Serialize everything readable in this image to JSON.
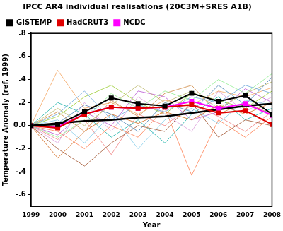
{
  "chart_data": {
    "type": "line",
    "title": "IPCC AR4 individual realisations (20C3M+SRES A1B)",
    "x_label": "Year",
    "y_label": "Temperature Anomaly (ref. 1999)",
    "x": [
      1999,
      2000,
      2001,
      2002,
      2003,
      2004,
      2005,
      2006,
      2007,
      2008
    ],
    "xlim": [
      1999,
      2008
    ],
    "xticks": [
      1999,
      2000,
      2001,
      2002,
      2003,
      2004,
      2005,
      2006,
      2007,
      2008
    ],
    "ylim": [
      -0.7,
      0.8
    ],
    "yticks": [
      {
        "value": -0.6,
        "label": "-.6"
      },
      {
        "value": -0.4,
        "label": "-.4"
      },
      {
        "value": -0.2,
        "label": "-.2"
      },
      {
        "value": 0,
        "label": "0.0"
      },
      {
        "value": 0.2,
        "label": ".2"
      },
      {
        "value": 0.4,
        "label": ".4"
      },
      {
        "value": 0.6,
        "label": ".6"
      },
      {
        "value": 0.8,
        "label": ".8"
      }
    ],
    "grid": false,
    "legend": "upper left",
    "series": [
      {
        "name": "GISTEMP",
        "color": "#000000",
        "marker": "square",
        "line_style": "solid",
        "values": [
          0,
          0.01,
          0.12,
          0.24,
          0.19,
          0.17,
          0.28,
          0.21,
          0.26,
          0.1
        ]
      },
      {
        "name": "HadCRUT3",
        "color": "#e00000",
        "marker": "square",
        "line_style": "solid",
        "values": [
          0,
          -0.02,
          0.1,
          0.16,
          0.15,
          0.16,
          0.18,
          0.11,
          0.13,
          0.01
        ]
      },
      {
        "name": "NCDC",
        "color": "#ff00ff",
        "marker": "square",
        "line_style": "solid",
        "values": [
          0,
          -0.01,
          0.1,
          0.16,
          0.15,
          0.16,
          0.21,
          0.15,
          0.19,
          0.09
        ]
      },
      {
        "color": "#000000",
        "marker": "none",
        "line_style": "solid",
        "values": [
          0,
          0.02,
          0.04,
          0.05,
          0.07,
          0.08,
          0.11,
          0.14,
          0.17,
          0.19
        ]
      },
      {
        "color": "#6fa8dc",
        "marker": "none",
        "line_style": "solid",
        "values": [
          0,
          0.1,
          0.3,
          0.05,
          0.18,
          0.12,
          0.25,
          0.2,
          0.35,
          0.28
        ]
      },
      {
        "color": "#f4a460",
        "marker": "none",
        "line_style": "solid",
        "values": [
          0,
          0.48,
          0.15,
          0.2,
          0.1,
          0.22,
          0.18,
          0.3,
          0.25,
          0.33
        ]
      },
      {
        "color": "#90ee90",
        "marker": "none",
        "line_style": "solid",
        "values": [
          0,
          -0.1,
          0.05,
          0.28,
          0.15,
          0.3,
          0.22,
          0.4,
          0.28,
          0.45
        ]
      },
      {
        "color": "#d2691e",
        "marker": "none",
        "line_style": "solid",
        "values": [
          0,
          -0.28,
          -0.05,
          0.1,
          0.02,
          0.12,
          0.05,
          0.18,
          0.1,
          0.2
        ]
      },
      {
        "color": "#87ceeb",
        "marker": "none",
        "line_style": "solid",
        "values": [
          0,
          0.05,
          -0.15,
          0.1,
          -0.2,
          0.05,
          0.15,
          0.02,
          0.22,
          0.18
        ]
      },
      {
        "color": "#dda0dd",
        "marker": "none",
        "line_style": "solid",
        "values": [
          0,
          -0.15,
          0.2,
          -0.05,
          0.25,
          0.1,
          -0.05,
          0.3,
          0.12,
          0.25
        ]
      },
      {
        "color": "#bdb76b",
        "marker": "none",
        "line_style": "solid",
        "values": [
          0,
          0.15,
          0.0,
          0.18,
          0.35,
          0.2,
          0.3,
          0.15,
          0.28,
          0.38
        ]
      },
      {
        "color": "#ff7f50",
        "marker": "none",
        "line_style": "solid",
        "values": [
          0,
          -0.05,
          -0.2,
          0.0,
          -0.1,
          0.15,
          -0.43,
          0.05,
          -0.1,
          0.08
        ]
      },
      {
        "color": "#20b2aa",
        "marker": "none",
        "line_style": "solid",
        "values": [
          0,
          0.2,
          0.1,
          -0.1,
          0.05,
          -0.15,
          0.1,
          0.25,
          0.05,
          0.15
        ]
      },
      {
        "color": "#a0522d",
        "marker": "none",
        "line_style": "solid",
        "values": [
          0,
          -0.2,
          -0.35,
          -0.15,
          0.0,
          -0.05,
          0.2,
          -0.1,
          0.05,
          0.0
        ]
      },
      {
        "color": "#9acd32",
        "marker": "none",
        "line_style": "solid",
        "values": [
          0,
          0.08,
          0.25,
          0.35,
          0.2,
          0.1,
          0.28,
          0.22,
          0.15,
          0.3
        ]
      },
      {
        "color": "#ba55d3",
        "marker": "none",
        "line_style": "solid",
        "values": [
          0,
          -0.08,
          0.12,
          0.0,
          0.3,
          0.25,
          0.05,
          0.12,
          0.32,
          0.2
        ]
      },
      {
        "color": "#cd853f",
        "marker": "none",
        "line_style": "solid",
        "values": [
          0,
          0.12,
          -0.05,
          0.22,
          0.08,
          0.28,
          0.35,
          0.1,
          0.2,
          0.1
        ]
      },
      {
        "color": "#4682b4",
        "marker": "none",
        "line_style": "solid",
        "values": [
          0,
          0.02,
          0.18,
          0.1,
          -0.05,
          0.2,
          0.12,
          0.35,
          0.18,
          0.42
        ]
      },
      {
        "color": "#f08080",
        "marker": "none",
        "line_style": "solid",
        "values": [
          0,
          -0.12,
          0.05,
          -0.25,
          0.1,
          0.0,
          0.18,
          0.08,
          -0.05,
          0.12
        ]
      }
    ]
  }
}
